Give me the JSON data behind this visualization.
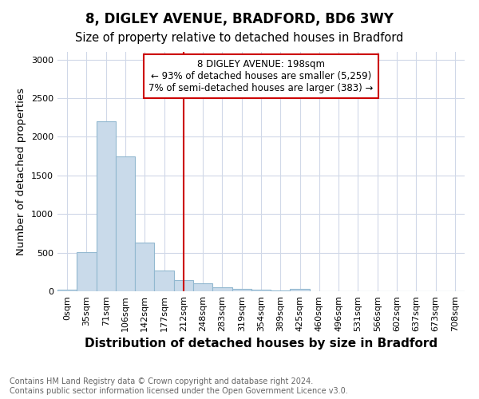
{
  "title": "8, DIGLEY AVENUE, BRADFORD, BD6 3WY",
  "subtitle": "Size of property relative to detached houses in Bradford",
  "xlabel": "Distribution of detached houses by size in Bradford",
  "ylabel": "Number of detached properties",
  "categories": [
    "0sqm",
    "35sqm",
    "71sqm",
    "106sqm",
    "142sqm",
    "177sqm",
    "212sqm",
    "248sqm",
    "283sqm",
    "319sqm",
    "354sqm",
    "389sqm",
    "425sqm",
    "460sqm",
    "496sqm",
    "531sqm",
    "566sqm",
    "602sqm",
    "637sqm",
    "673sqm",
    "708sqm"
  ],
  "values": [
    20,
    510,
    2200,
    1750,
    635,
    270,
    145,
    100,
    55,
    30,
    20,
    15,
    30,
    5,
    0,
    0,
    0,
    0,
    5,
    0,
    0
  ],
  "bar_color": "#c9daea",
  "bar_edge_color": "#92b8d0",
  "annotation_box_text": "8 DIGLEY AVENUE: 198sqm\n← 93% of detached houses are smaller (5,259)\n7% of semi-detached houses are larger (383) →",
  "annotation_box_color": "#ffffff",
  "annotation_box_edge_color": "#cc0000",
  "vline_color": "#cc0000",
  "vline_x_index": 6.0,
  "ylim": [
    0,
    3100
  ],
  "yticks": [
    0,
    500,
    1000,
    1500,
    2000,
    2500,
    3000
  ],
  "footnote": "Contains HM Land Registry data © Crown copyright and database right 2024.\nContains public sector information licensed under the Open Government Licence v3.0.",
  "background_color": "#ffffff",
  "plot_background_color": "#ffffff",
  "grid_color": "#d0d8e8",
  "title_fontsize": 12,
  "subtitle_fontsize": 10.5,
  "xlabel_fontsize": 11,
  "ylabel_fontsize": 9.5,
  "footnote_fontsize": 7,
  "tick_fontsize": 8
}
